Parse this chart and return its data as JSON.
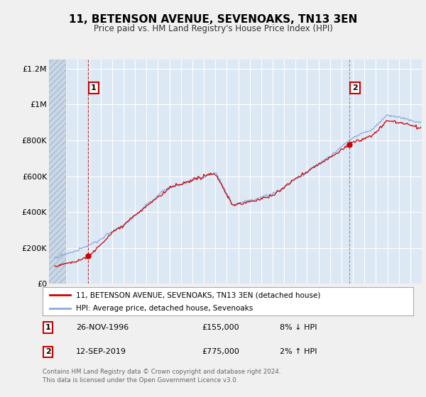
{
  "title": "11, BETENSON AVENUE, SEVENOAKS, TN13 3EN",
  "subtitle": "Price paid vs. HM Land Registry's House Price Index (HPI)",
  "hpi_label": "HPI: Average price, detached house, Sevenoaks",
  "price_label": "11, BETENSON AVENUE, SEVENOAKS, TN13 3EN (detached house)",
  "price_color": "#cc0000",
  "hpi_color": "#88aadd",
  "background_color": "#f0f0f0",
  "plot_bg_color": "#dde8f5",
  "grid_color": "#ffffff",
  "ylim": [
    0,
    1250000
  ],
  "yticks": [
    0,
    200000,
    400000,
    600000,
    800000,
    1000000,
    1200000
  ],
  "ytick_labels": [
    "£0",
    "£200K",
    "£400K",
    "£600K",
    "£800K",
    "£1M",
    "£1.2M"
  ],
  "sale1_x": 1996.9,
  "sale1_y": 155000,
  "sale2_x": 2019.7,
  "sale2_y": 775000,
  "footer_line1": "Contains HM Land Registry data © Crown copyright and database right 2024.",
  "footer_line2": "This data is licensed under the Open Government Licence v3.0.",
  "xmin": 1993.5,
  "xmax": 2026.0,
  "hatch_end": 1995.0
}
